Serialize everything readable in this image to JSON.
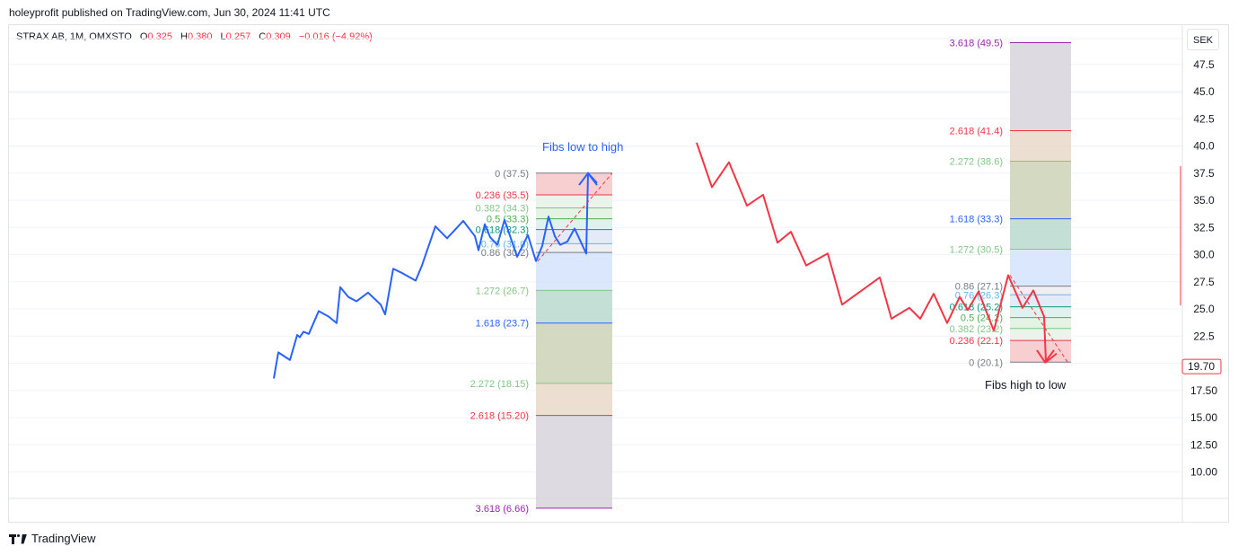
{
  "header": {
    "published": "holeyprofit published on TradingView.com, Jun 30, 2024 11:41 UTC"
  },
  "legend": {
    "symbol": "STRAX AB, 1M, OMXSTO",
    "open_label": "O",
    "open": "0.325",
    "high_label": "H",
    "high": "0.380",
    "low_label": "L",
    "low": "0.257",
    "close_label": "C",
    "close": "0.309",
    "change": "−0.016 (−4.92%)"
  },
  "price_axis": {
    "currency": "SEK",
    "last_price_label": "19.70",
    "last_price": 19.7
  },
  "footer": {
    "brand": "TradingView"
  },
  "colors": {
    "blue_series": "#2962ff",
    "red_series": "#f23645",
    "last_price": "#f23645"
  },
  "chart_data": {
    "type": "line",
    "ylim": [
      7.5,
      50
    ],
    "y_ticks": [
      10.0,
      12.5,
      15.0,
      17.5,
      20.0,
      22.5,
      25.0,
      27.5,
      30.0,
      32.5,
      35.0,
      37.5,
      40.0,
      42.5,
      45.0,
      47.5
    ],
    "y_tick_labels": [
      "10.00",
      "12.50",
      "15.00",
      "17.50",
      "20.0",
      "22.5",
      "25.0",
      "27.5",
      "30.0",
      "32.5",
      "35.0",
      "37.5",
      "40.0",
      "42.5",
      "45.0",
      "47.5"
    ],
    "series": [
      {
        "color": "#2962ff",
        "values": [
          18.6,
          21.0,
          20.3,
          22.6,
          22.4,
          22.9,
          22.7,
          24.8,
          24.3,
          23.7,
          27.0,
          26.1,
          25.7,
          26.5,
          25.4,
          24.5,
          28.7,
          28.3,
          27.6,
          29.0,
          32.6,
          31.5,
          33.1,
          31.7,
          30.4,
          32.8,
          31.6,
          30.9,
          33.2,
          29.8,
          31.8,
          29.4,
          30.8,
          33.5,
          31.7,
          30.9,
          31.2,
          32.4,
          30.1,
          37.5,
          36.6
        ]
      },
      {
        "color": "#f23645",
        "values": [
          40.3,
          36.2,
          38.5,
          34.5,
          35.5,
          31.1,
          32.1,
          29.0,
          30.1,
          25.4,
          27.9,
          24.1,
          25.1,
          24.1,
          26.4,
          23.7,
          26.1,
          24.9,
          26.6,
          23.0,
          28.1,
          25.1,
          26.7,
          24.3,
          20.1,
          20.9
        ]
      }
    ],
    "fib_low_to_high": {
      "label": "Fibs low to high",
      "levels": [
        {
          "ratio": "0",
          "price": 37.5,
          "text": "0 (37.5)",
          "color": "#787b86"
        },
        {
          "ratio": "0.236",
          "price": 35.5,
          "text": "0.236 (35.5)",
          "color": "#f23645"
        },
        {
          "ratio": "0.382",
          "price": 34.3,
          "text": "0.382 (34.3)",
          "color": "#81c784"
        },
        {
          "ratio": "0.5",
          "price": 33.3,
          "text": "0.5 (33.3)",
          "color": "#4caf50"
        },
        {
          "ratio": "0.618",
          "price": 32.3,
          "text": "0.618 (32.3)",
          "color": "#089981"
        },
        {
          "ratio": "0.76",
          "price": 31.0,
          "text": "0.76 (31.0)",
          "color": "#64b5f6"
        },
        {
          "ratio": "0.86",
          "price": 30.2,
          "text": "0.86 (30.2)",
          "color": "#787b86"
        },
        {
          "ratio": "1.272",
          "price": 26.7,
          "text": "1.272 (26.7)",
          "color": "#81c784"
        },
        {
          "ratio": "1.618",
          "price": 23.7,
          "text": "1.618 (23.7)",
          "color": "#2962ff"
        },
        {
          "ratio": "2.272",
          "price": 18.15,
          "text": "2.272 (18.15)",
          "color": "#81c784"
        },
        {
          "ratio": "2.618",
          "price": 15.2,
          "text": "2.618 (15.20)",
          "color": "#f23645"
        },
        {
          "ratio": "3.618",
          "price": 6.66,
          "text": "3.618 (6.66)",
          "color": "#9c27b0"
        }
      ]
    },
    "fib_high_to_low": {
      "label": "Fibs high to low",
      "levels": [
        {
          "ratio": "0",
          "price": 20.1,
          "text": "0 (20.1)",
          "color": "#787b86"
        },
        {
          "ratio": "0.236",
          "price": 22.1,
          "text": "0.236 (22.1)",
          "color": "#f23645"
        },
        {
          "ratio": "0.382",
          "price": 23.2,
          "text": "0.382 (23.2)",
          "color": "#81c784"
        },
        {
          "ratio": "0.5",
          "price": 24.2,
          "text": "0.5 (24.2)",
          "color": "#4caf50"
        },
        {
          "ratio": "0.618",
          "price": 25.2,
          "text": "0.618 (25.2)",
          "color": "#089981"
        },
        {
          "ratio": "0.76",
          "price": 26.3,
          "text": "0.76 (26.3)",
          "color": "#64b5f6"
        },
        {
          "ratio": "0.86",
          "price": 27.1,
          "text": "0.86 (27.1)",
          "color": "#787b86"
        },
        {
          "ratio": "1.272",
          "price": 30.5,
          "text": "1.272 (30.5)",
          "color": "#81c784"
        },
        {
          "ratio": "1.618",
          "price": 33.3,
          "text": "1.618 (33.3)",
          "color": "#2962ff"
        },
        {
          "ratio": "2.272",
          "price": 38.6,
          "text": "2.272 (38.6)",
          "color": "#81c784"
        },
        {
          "ratio": "2.618",
          "price": 41.4,
          "text": "2.618 (41.4)",
          "color": "#f23645"
        },
        {
          "ratio": "3.618",
          "price": 49.5,
          "text": "3.618 (49.5)",
          "color": "#9c27b0"
        }
      ]
    }
  }
}
